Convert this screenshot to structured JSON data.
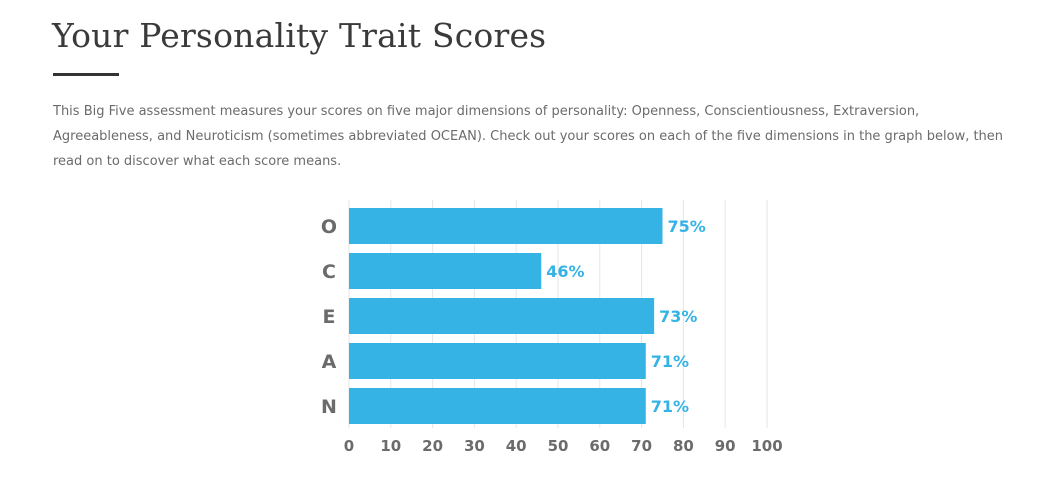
{
  "page": {
    "title": "Your Personality Trait Scores",
    "intro": "This Big Five assessment measures your scores on five major dimensions of personality: Openness, Conscientiousness, Extraversion, Agreeableness, and Neuroticism (sometimes abbreviated OCEAN). Check out your scores on each of the five dimensions in the graph below, then read on to discover what each score means."
  },
  "chart_data": {
    "type": "bar",
    "orientation": "horizontal",
    "categories": [
      "O",
      "C",
      "E",
      "A",
      "N"
    ],
    "values": [
      75,
      46,
      73,
      71,
      71
    ],
    "value_labels": [
      "75%",
      "46%",
      "73%",
      "71%",
      "71%"
    ],
    "xlim": [
      0,
      100
    ],
    "xticks": [
      0,
      10,
      20,
      30,
      40,
      50,
      60,
      70,
      80,
      90,
      100
    ],
    "grid": true,
    "bar_color": "#35b3e5",
    "label_color": "#35b3e5"
  }
}
